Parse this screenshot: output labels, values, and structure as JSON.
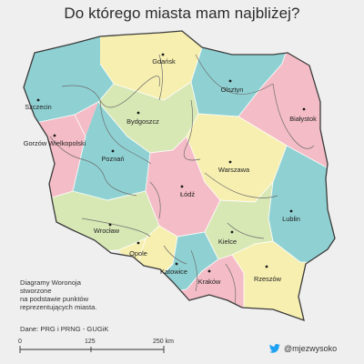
{
  "title": "Do którego miasta mam najbliżej?",
  "colors": {
    "yellow": "#f7efb0",
    "teal": "#8fd1d3",
    "pink": "#f4bcc6",
    "green": "#d8e8b5",
    "background": "#efefef",
    "twitter_blue": "#1da1f2"
  },
  "cities": [
    {
      "id": "gdansk",
      "label": "Gdańsk"
    },
    {
      "id": "szczecin",
      "label": "Szczecin"
    },
    {
      "id": "olsztyn",
      "label": "Olsztyn"
    },
    {
      "id": "bydgoszcz",
      "label": "Bydgoszcz"
    },
    {
      "id": "bialystok",
      "label": "Białystok"
    },
    {
      "id": "gorzow",
      "label": "Gorzów Wielkopolski"
    },
    {
      "id": "poznan",
      "label": "Poznań"
    },
    {
      "id": "warszawa",
      "label": "Warszawa"
    },
    {
      "id": "lodz",
      "label": "Łódź"
    },
    {
      "id": "lublin",
      "label": "Lublin"
    },
    {
      "id": "wroclaw",
      "label": "Wrocław"
    },
    {
      "id": "kielce",
      "label": "Kielce"
    },
    {
      "id": "opole",
      "label": "Opole"
    },
    {
      "id": "katowice",
      "label": "Katowice"
    },
    {
      "id": "krakow",
      "label": "Kraków"
    },
    {
      "id": "rzeszow",
      "label": "Rzeszów"
    }
  ],
  "notes": {
    "line1": "Diagramy Woronoja",
    "line2": "stworzone",
    "line3": "na podstawie punktów",
    "line4": "reprezentujących miasta."
  },
  "source": "Dane: PRG i PRNG - GUGiK",
  "scale": {
    "labels": [
      "0",
      "125",
      "250 km"
    ]
  },
  "credit": {
    "handle": "@mjezwysoko",
    "icon": "twitter-bird-icon"
  }
}
